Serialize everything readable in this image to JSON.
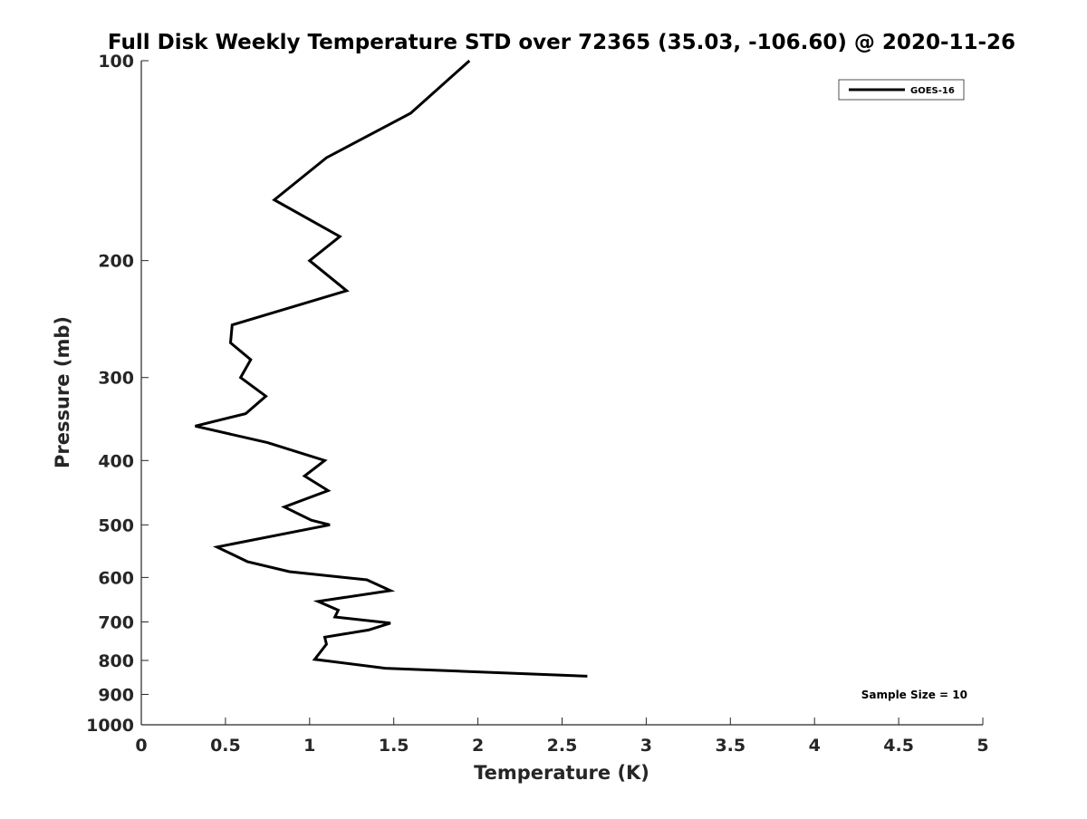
{
  "chart_data": {
    "type": "line",
    "title": "Full Disk Weekly Temperature STD over 72365 (35.03, -106.60) @ 2020-11-26",
    "xlabel": "Temperature (K)",
    "ylabel": "Pressure (mb)",
    "xlim": [
      0,
      5
    ],
    "ylim": [
      100,
      1000
    ],
    "yscale": "log",
    "yreversed": true,
    "grid": false,
    "legend_position": "top-right",
    "x_ticks": [
      "0",
      "0.5",
      "1",
      "1.5",
      "2",
      "2.5",
      "3",
      "3.5",
      "4",
      "4.5",
      "5"
    ],
    "y_ticks": [
      "100",
      "200",
      "300",
      "400",
      "500",
      "600",
      "700",
      "800",
      "900",
      "1000"
    ],
    "series": [
      {
        "name": "GOES-16",
        "color": "#000000",
        "x": [
          1.95,
          1.6,
          1.1,
          0.79,
          1.18,
          1.0,
          1.22,
          0.54,
          0.53,
          0.65,
          0.59,
          0.74,
          0.62,
          0.32,
          0.75,
          1.09,
          0.97,
          1.11,
          0.85,
          1.01,
          1.12,
          0.45,
          0.63,
          0.88,
          1.34,
          1.48,
          1.05,
          1.17,
          1.15,
          1.48,
          1.35,
          1.09,
          1.1,
          1.03,
          1.45,
          2.65
        ],
        "y": [
          100,
          120,
          140,
          162,
          184,
          200,
          222,
          250,
          266,
          282,
          300,
          320,
          340,
          355,
          376,
          400,
          422,
          444,
          470,
          492,
          500,
          540,
          568,
          588,
          605,
          628,
          652,
          672,
          688,
          703,
          720,
          738,
          756,
          797,
          822,
          845
        ]
      }
    ],
    "legend": [
      "GOES-16"
    ],
    "annotation": "Sample Size = 10"
  }
}
